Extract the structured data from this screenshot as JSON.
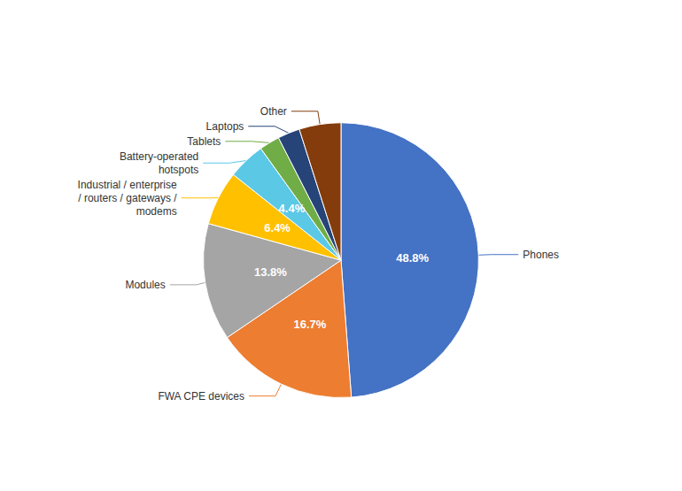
{
  "chart_data": {
    "type": "pie",
    "categories": [
      "Phones",
      "FWA CPE devices",
      "Modules",
      "Industrial / enterprise\n/ routers / gateways /\nmodems",
      "Battery-operated\nhotspots",
      "Tablets",
      "Laptops",
      "Other"
    ],
    "values": [
      48.8,
      16.7,
      13.8,
      6.4,
      4.4,
      2.4,
      2.6,
      4.9
    ],
    "value_labels": [
      "48.8%",
      "16.7%",
      "13.8%",
      "6.4%",
      "4.4%",
      null,
      null,
      null
    ],
    "colors": [
      "#4472C4",
      "#ED7D31",
      "#A5A5A5",
      "#FFC000",
      "#5BC8E6",
      "#70AD47",
      "#264478",
      "#843C0C"
    ],
    "data_labels": true
  }
}
